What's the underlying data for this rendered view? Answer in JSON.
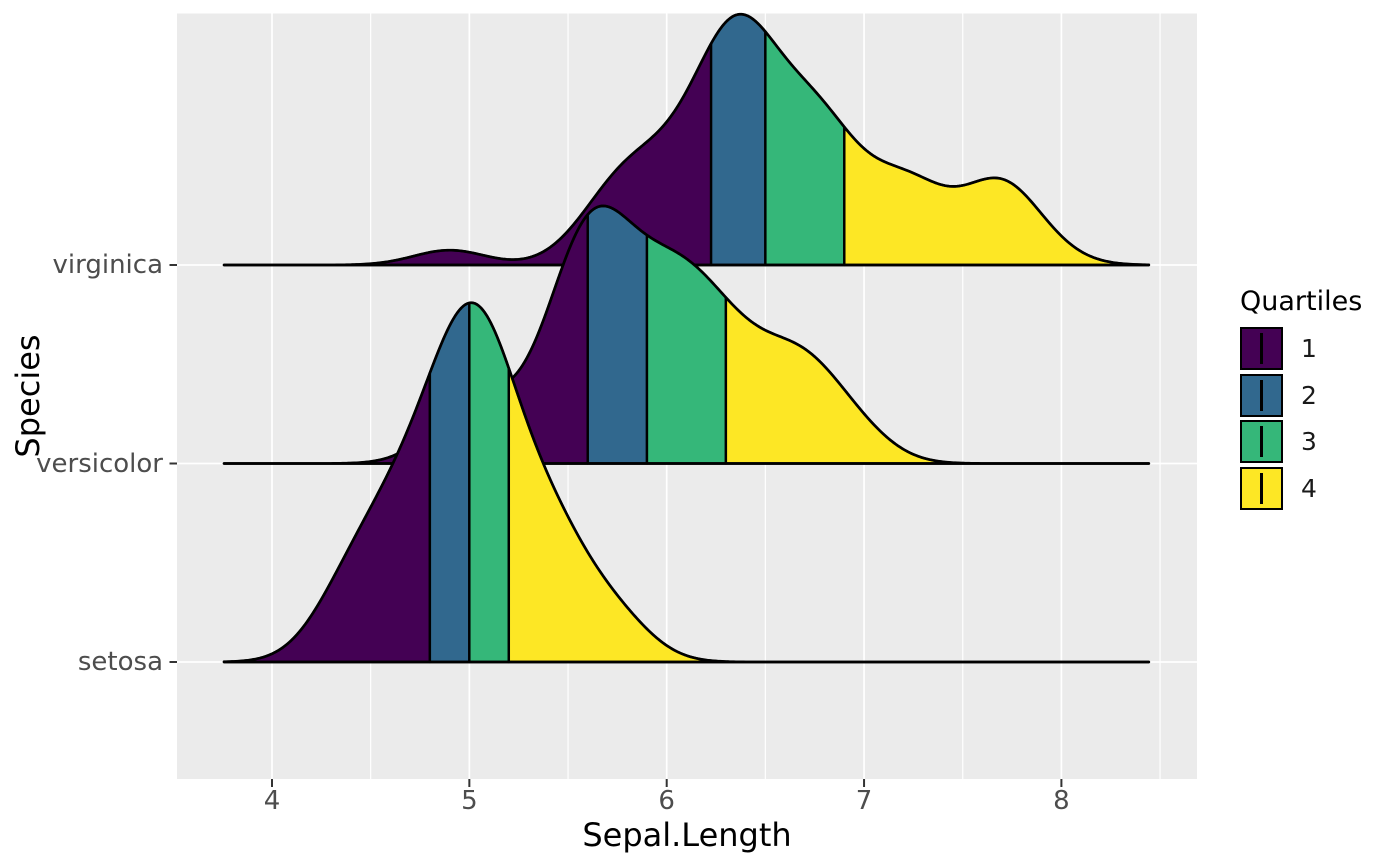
{
  "colors": {
    "panel_background": "#EBEBEB",
    "gridline": "#FFFFFF",
    "ridge_outline": "#000000",
    "tick_mark": "#333333",
    "tick_label": "#4D4D4D",
    "axis_title": "#000000"
  },
  "chart_data": {
    "type": "ridgeline-density",
    "title": "",
    "xlabel": "Sepal.Length",
    "ylabel": "Species",
    "x_ticks": [
      4,
      5,
      6,
      7,
      8
    ],
    "x_minor_ticks": [
      4.5,
      5.5,
      6.5,
      7.5,
      8.5
    ],
    "x_axis_range": [
      3.52,
      8.69
    ],
    "y_categories_top_to_bottom": [
      "virginica",
      "versicolor",
      "setosa"
    ],
    "legend": {
      "title": "Quartiles",
      "position": "right",
      "entries": [
        {
          "label": "1",
          "color": "#440154"
        },
        {
          "label": "2",
          "color": "#31688E"
        },
        {
          "label": "3",
          "color": "#35B779"
        },
        {
          "label": "4",
          "color": "#FDE725"
        }
      ]
    },
    "density": {
      "kernel": "gaussian",
      "bandwidth": 0.181,
      "eval_from": 3.757,
      "eval_to": 8.443,
      "relative_max_height": 1.81
    },
    "series": [
      {
        "name": "setosa",
        "quartiles": [
          4.8,
          5.0,
          5.2
        ],
        "sepal_length_values": [
          5.1,
          4.9,
          4.7,
          4.6,
          5.0,
          5.4,
          4.6,
          5.0,
          4.4,
          4.9,
          5.4,
          4.8,
          4.8,
          4.3,
          5.8,
          5.7,
          5.4,
          5.1,
          5.7,
          5.1,
          5.4,
          5.1,
          4.6,
          5.1,
          4.8,
          5.0,
          5.0,
          5.2,
          5.2,
          4.7,
          4.8,
          5.4,
          5.2,
          5.5,
          4.9,
          5.0,
          5.5,
          4.9,
          4.4,
          5.1,
          5.0,
          4.5,
          4.4,
          5.0,
          5.1,
          4.8,
          5.1,
          4.6,
          5.3,
          5.0
        ]
      },
      {
        "name": "versicolor",
        "quartiles": [
          5.6,
          5.9,
          6.3
        ],
        "sepal_length_values": [
          7.0,
          6.4,
          6.9,
          5.5,
          6.5,
          5.7,
          6.3,
          4.9,
          6.6,
          5.2,
          5.0,
          5.9,
          6.0,
          6.1,
          5.6,
          6.7,
          5.6,
          5.8,
          6.2,
          5.6,
          5.9,
          6.1,
          6.3,
          6.1,
          6.4,
          6.6,
          6.8,
          6.7,
          6.0,
          5.7,
          5.5,
          5.5,
          5.8,
          6.0,
          5.4,
          6.0,
          6.7,
          6.3,
          5.6,
          5.5,
          5.5,
          6.1,
          5.8,
          5.0,
          5.6,
          5.7,
          5.7,
          6.2,
          5.1,
          5.7
        ]
      },
      {
        "name": "virginica",
        "quartiles": [
          6.225,
          6.5,
          6.9
        ],
        "sepal_length_values": [
          6.3,
          5.8,
          7.1,
          6.3,
          6.5,
          7.6,
          4.9,
          7.3,
          6.7,
          7.2,
          6.5,
          6.4,
          6.8,
          5.7,
          5.8,
          6.4,
          6.5,
          7.7,
          7.7,
          6.0,
          6.9,
          5.6,
          7.7,
          6.3,
          6.7,
          7.2,
          6.2,
          6.1,
          6.4,
          7.2,
          7.4,
          7.9,
          6.4,
          6.3,
          6.1,
          7.7,
          6.3,
          6.4,
          6.0,
          6.9,
          6.7,
          6.9,
          5.8,
          6.8,
          6.7,
          6.7,
          6.3,
          6.5,
          6.2,
          5.9
        ]
      }
    ]
  }
}
